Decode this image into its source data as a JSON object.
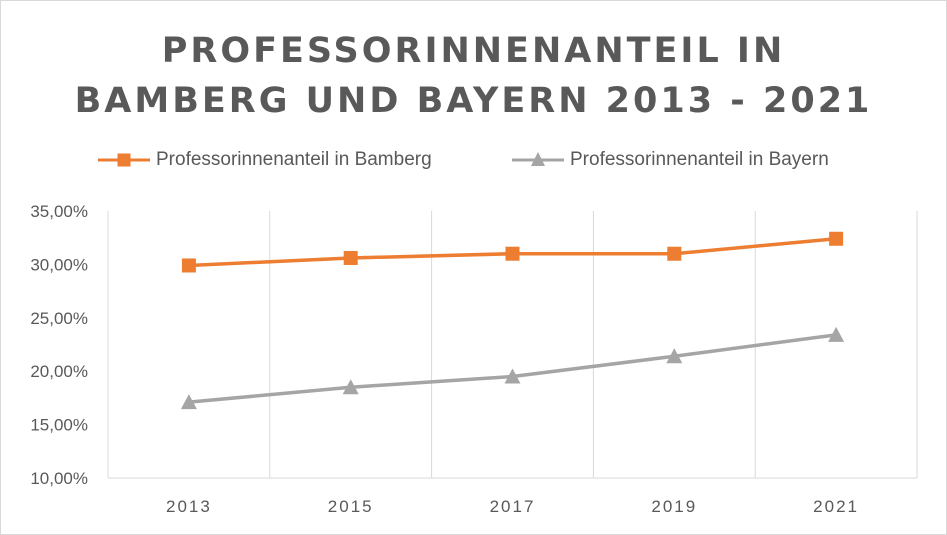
{
  "chart_data": {
    "type": "line",
    "title_lines": [
      "PROFESSORINNENANTEIL IN",
      "BAMBERG UND BAYERN 2013 - 2021"
    ],
    "categories": [
      "2013",
      "2015",
      "2017",
      "2019",
      "2021"
    ],
    "series": [
      {
        "name": "Professorinnenanteil in Bamberg",
        "values": [
          29.9,
          30.6,
          31.0,
          31.0,
          32.4
        ],
        "color": "#ED7D31",
        "marker": "square"
      },
      {
        "name": "Professorinnenanteil in Bayern",
        "values": [
          17.1,
          18.5,
          19.5,
          21.4,
          23.4
        ],
        "color": "#A5A5A5",
        "marker": "triangle"
      }
    ],
    "y_ticks": [
      "10,00%",
      "15,00%",
      "20,00%",
      "25,00%",
      "30,00%",
      "35,00%"
    ],
    "y_tick_values": [
      10,
      15,
      20,
      25,
      30,
      35
    ],
    "ylim": [
      10,
      35
    ],
    "xlabel": "",
    "ylabel": "",
    "grid": "vertical",
    "legend_position": "top"
  }
}
